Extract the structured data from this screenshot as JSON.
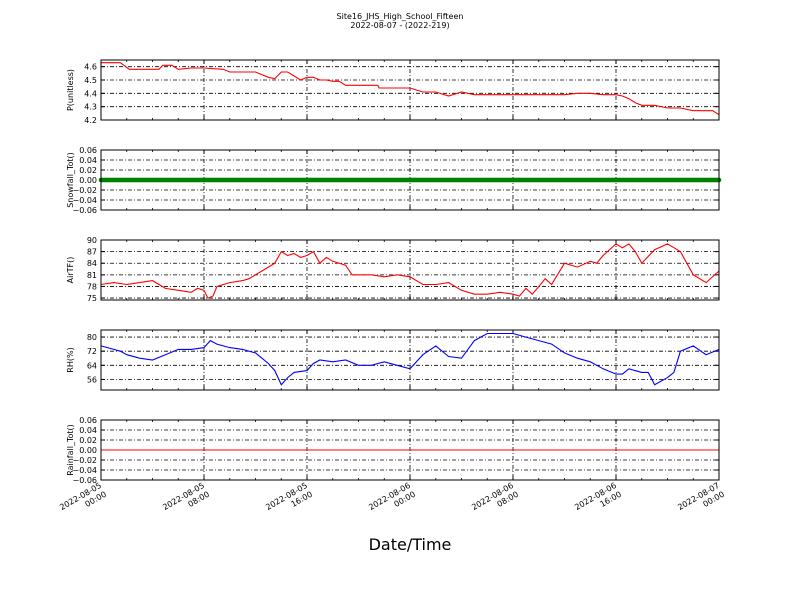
{
  "figure": {
    "title_line1": "Site16_JHS_High_School_Fifteen",
    "title_line2": "2022-08-07 - (2022-219)",
    "xlabel": "Date/Time"
  },
  "x_ticks": [
    {
      "line1": "2022-08-05",
      "line2": "00:00"
    },
    {
      "line1": "2022-08-05",
      "line2": "08:00"
    },
    {
      "line1": "2022-08-05",
      "line2": "16:00"
    },
    {
      "line1": "2022-08-06",
      "line2": "00:00"
    },
    {
      "line1": "2022-08-06",
      "line2": "08:00"
    },
    {
      "line1": "2022-08-06",
      "line2": "16:00"
    },
    {
      "line1": "2022-08-07",
      "line2": "00:00"
    }
  ],
  "chart_data": [
    {
      "type": "line",
      "ylabel": "P(unitless)",
      "ylim": [
        4.2,
        4.65
      ],
      "yticks": [
        4.2,
        4.3,
        4.4,
        4.5,
        4.6
      ],
      "ytick_labels": [
        "4.2",
        "4.3",
        "4.4",
        "4.5",
        "4.6"
      ],
      "xlim": [
        0,
        48
      ],
      "grid": true,
      "color": "#ff0000",
      "marker": false,
      "x": [
        0,
        1.5,
        2.2,
        3,
        4.5,
        4.8,
        5.5,
        6,
        7,
        8,
        9.5,
        10,
        12,
        13,
        13.5,
        14,
        14.5,
        15.5,
        16,
        16.5,
        17,
        17.5,
        18,
        18.5,
        19,
        19.5,
        20,
        21.5,
        21.6,
        22,
        23.5,
        24,
        25,
        26,
        27,
        28,
        29,
        30,
        32,
        34,
        35,
        36,
        37,
        38,
        39,
        40,
        40.5,
        41,
        41.5,
        42,
        43,
        44,
        45,
        46,
        47.5,
        48
      ],
      "values": [
        4.63,
        4.63,
        4.58,
        4.58,
        4.58,
        4.61,
        4.61,
        4.58,
        4.59,
        4.59,
        4.58,
        4.56,
        4.56,
        4.52,
        4.51,
        4.56,
        4.56,
        4.5,
        4.52,
        4.52,
        4.5,
        4.5,
        4.49,
        4.49,
        4.46,
        4.46,
        4.46,
        4.46,
        4.44,
        4.44,
        4.44,
        4.44,
        4.41,
        4.41,
        4.38,
        4.41,
        4.39,
        4.39,
        4.39,
        4.39,
        4.39,
        4.39,
        4.4,
        4.4,
        4.39,
        4.39,
        4.38,
        4.36,
        4.33,
        4.31,
        4.31,
        4.29,
        4.29,
        4.27,
        4.27,
        4.24
      ]
    },
    {
      "type": "line",
      "ylabel": "Snowfall_Tot()",
      "ylim": [
        -0.06,
        0.06
      ],
      "yticks": [
        -0.06,
        -0.04,
        -0.02,
        0.0,
        0.02,
        0.04,
        0.06
      ],
      "ytick_labels": [
        "−0.06",
        "−0.04",
        "−0.02",
        "0.00",
        "0.02",
        "0.04",
        "0.06"
      ],
      "xlim": [
        0,
        48
      ],
      "grid": true,
      "color": "#008000",
      "marker": true,
      "x": [
        0,
        48
      ],
      "values": [
        0,
        0
      ]
    },
    {
      "type": "line",
      "ylabel": "AirTF()",
      "ylim": [
        74.5,
        90
      ],
      "yticks": [
        75,
        78,
        81,
        84,
        87,
        90
      ],
      "ytick_labels": [
        "75",
        "78",
        "81",
        "84",
        "87",
        "90"
      ],
      "xlim": [
        0,
        48
      ],
      "grid": true,
      "color": "#ff0000",
      "marker": false,
      "x": [
        0,
        1,
        2,
        3,
        4,
        5,
        6,
        7,
        7.5,
        8,
        8.3,
        8.7,
        9,
        10,
        11,
        11.5,
        12,
        13,
        13.5,
        14,
        14.5,
        15,
        15.5,
        16,
        16.5,
        17,
        17.5,
        18,
        19,
        19.5,
        20,
        21,
        22,
        23,
        24,
        25,
        26,
        27,
        28,
        29,
        30,
        31,
        32,
        32.5,
        33,
        33.5,
        34,
        34.5,
        35,
        36,
        37,
        38,
        38.5,
        39,
        40,
        40.5,
        41,
        41.5,
        42,
        43,
        44,
        44.5,
        45,
        46,
        47,
        48
      ],
      "values": [
        78.5,
        79,
        78.5,
        79,
        79.5,
        77.5,
        77,
        76.5,
        77.5,
        77,
        75,
        75.5,
        78,
        79,
        79.5,
        80,
        81,
        83,
        84,
        87,
        86,
        86.5,
        85.5,
        86,
        87,
        84,
        85.5,
        84.5,
        83.5,
        81,
        81,
        81,
        80.5,
        81,
        80.5,
        78.5,
        78.5,
        79,
        77,
        76,
        76,
        76.5,
        76,
        75.5,
        77.5,
        76,
        78,
        80,
        78.5,
        84,
        83,
        84.5,
        84,
        86,
        89,
        88,
        89,
        87,
        84,
        87.5,
        89,
        88,
        87,
        81,
        79,
        82
      ]
    },
    {
      "type": "line",
      "ylabel": "RH(%)",
      "ylim": [
        50,
        84
      ],
      "yticks": [
        56,
        64,
        72,
        80
      ],
      "ytick_labels": [
        "56",
        "64",
        "72",
        "80"
      ],
      "xlim": [
        0,
        48
      ],
      "grid": true,
      "color": "#0000ff",
      "marker": false,
      "x": [
        0,
        1,
        1.5,
        2,
        3,
        4,
        5,
        6,
        7,
        8,
        8.5,
        9,
        10,
        11,
        12,
        13,
        13.5,
        14,
        14.5,
        15,
        16,
        16.5,
        17,
        18,
        19,
        20,
        21,
        22,
        23,
        24,
        25,
        26,
        27,
        28,
        29,
        30,
        31,
        32,
        33,
        34,
        35,
        36,
        37,
        38,
        39,
        40,
        40.5,
        41,
        42,
        42.5,
        43,
        44,
        44.5,
        45,
        46,
        47,
        48
      ],
      "values": [
        75,
        73,
        72,
        70,
        68,
        67,
        70,
        73,
        73,
        74,
        78,
        76,
        74,
        73,
        71,
        65,
        61,
        53,
        57,
        60,
        61,
        65,
        67,
        66,
        67,
        64,
        64,
        66,
        64,
        62,
        70,
        75,
        69,
        68,
        78,
        82,
        82,
        82,
        80,
        78,
        76,
        71,
        68,
        66,
        62,
        59,
        59,
        62,
        60,
        60,
        53,
        57,
        60,
        72,
        75,
        70,
        73
      ]
    },
    {
      "type": "line",
      "ylabel": "Rainfall_Tot()",
      "ylim": [
        -0.06,
        0.06
      ],
      "yticks": [
        -0.06,
        -0.04,
        -0.02,
        0.0,
        0.02,
        0.04,
        0.06
      ],
      "ytick_labels": [
        "−0.06",
        "−0.04",
        "−0.02",
        "0.00",
        "0.02",
        "0.04",
        "0.06"
      ],
      "xlim": [
        0,
        48
      ],
      "grid": true,
      "color": "#ff0000",
      "marker": false,
      "x": [
        0,
        48
      ],
      "values": [
        0,
        0
      ]
    }
  ]
}
